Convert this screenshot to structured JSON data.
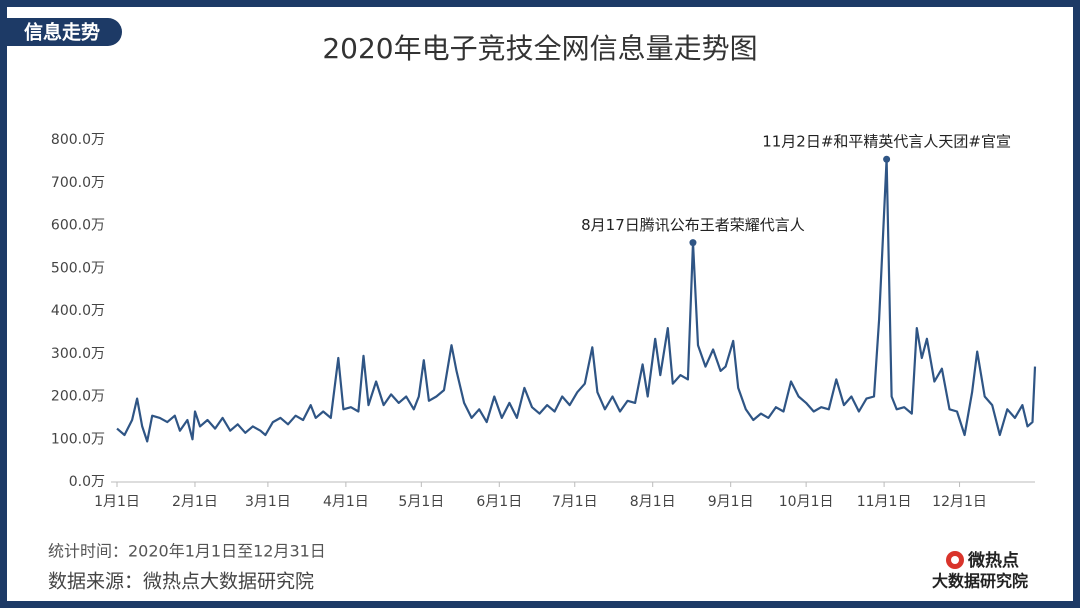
{
  "tag": "信息走势",
  "footer": {
    "period": "统计时间：2020年1月1日至12月31日",
    "source": "数据来源：微热点大数据研究院"
  },
  "logo": {
    "name": "微热点",
    "org": "大数据研究院"
  },
  "chart_data": {
    "type": "line",
    "title": "2020年电子竞技全网信息量走势图",
    "color": "#2f5585",
    "x": [
      1,
      4,
      7,
      9,
      11,
      13,
      15,
      18,
      21,
      24,
      26,
      29,
      31,
      32,
      34,
      37,
      40,
      43,
      46,
      49,
      52,
      55,
      58,
      60,
      63,
      66,
      69,
      72,
      75,
      78,
      80,
      83,
      86,
      89,
      91,
      94,
      97,
      99,
      101,
      104,
      107,
      110,
      113,
      116,
      119,
      121,
      123,
      125,
      128,
      131,
      134,
      136,
      139,
      142,
      145,
      148,
      151,
      154,
      157,
      160,
      163,
      166,
      169,
      172,
      175,
      178,
      181,
      184,
      187,
      190,
      192,
      195,
      198,
      201,
      204,
      207,
      210,
      212,
      215,
      217,
      220,
      222,
      225,
      228,
      230,
      232,
      235,
      238,
      241,
      243,
      246,
      248,
      251,
      254,
      257,
      260,
      263,
      266,
      269,
      272,
      275,
      278,
      281,
      284,
      287,
      290,
      293,
      296,
      299,
      302,
      304,
      307,
      309,
      311,
      314,
      317,
      319,
      321,
      323,
      326,
      329,
      332,
      335,
      338,
      341,
      343,
      346,
      349,
      352,
      355,
      358,
      361,
      363,
      365,
      366
    ],
    "values": [
      125,
      110,
      145,
      195,
      130,
      95,
      155,
      150,
      140,
      155,
      120,
      145,
      100,
      165,
      130,
      145,
      125,
      150,
      120,
      135,
      115,
      130,
      120,
      110,
      140,
      150,
      135,
      155,
      145,
      180,
      150,
      165,
      150,
      290,
      170,
      175,
      165,
      295,
      180,
      235,
      180,
      205,
      185,
      200,
      170,
      200,
      285,
      190,
      200,
      215,
      320,
      260,
      185,
      150,
      170,
      140,
      200,
      150,
      185,
      150,
      220,
      175,
      160,
      180,
      165,
      200,
      180,
      210,
      230,
      315,
      210,
      170,
      200,
      165,
      190,
      185,
      275,
      200,
      335,
      250,
      360,
      230,
      250,
      240,
      560,
      320,
      270,
      310,
      260,
      270,
      330,
      220,
      170,
      145,
      160,
      150,
      175,
      165,
      235,
      200,
      185,
      165,
      175,
      170,
      240,
      180,
      200,
      165,
      195,
      200,
      380,
      755,
      200,
      170,
      175,
      160,
      360,
      290,
      335,
      235,
      265,
      170,
      165,
      110,
      210,
      305,
      200,
      180,
      110,
      170,
      150,
      180,
      130,
      140,
      270
    ],
    "xlim": [
      1,
      366
    ],
    "xticks": [
      {
        "value": 1,
        "label": "1月1日"
      },
      {
        "value": 32,
        "label": "2月1日"
      },
      {
        "value": 61,
        "label": "3月1日"
      },
      {
        "value": 92,
        "label": "4月1日"
      },
      {
        "value": 122,
        "label": "5月1日"
      },
      {
        "value": 153,
        "label": "6月1日"
      },
      {
        "value": 183,
        "label": "7月1日"
      },
      {
        "value": 214,
        "label": "8月1日"
      },
      {
        "value": 245,
        "label": "9月1日"
      },
      {
        "value": 275,
        "label": "10月1日"
      },
      {
        "value": 306,
        "label": "11月1日"
      },
      {
        "value": 336,
        "label": "12月1日"
      }
    ],
    "ylim": [
      0,
      800
    ],
    "yticks": [
      {
        "value": 0,
        "label": "0.0万"
      },
      {
        "value": 100,
        "label": "100.0万"
      },
      {
        "value": 200,
        "label": "200.0万"
      },
      {
        "value": 300,
        "label": "300.0万"
      },
      {
        "value": 400,
        "label": "400.0万"
      },
      {
        "value": 500,
        "label": "500.0万"
      },
      {
        "value": 600,
        "label": "600.0万"
      },
      {
        "value": 700,
        "label": "700.0万"
      },
      {
        "value": 800,
        "label": "800.0万"
      }
    ],
    "annotations": [
      {
        "text": "8月17日腾讯公布王者荣耀代言人",
        "x": 230,
        "y": 560
      },
      {
        "text": "11月2日#和平精英代言人天团#官宣",
        "x": 307,
        "y": 755
      }
    ]
  }
}
